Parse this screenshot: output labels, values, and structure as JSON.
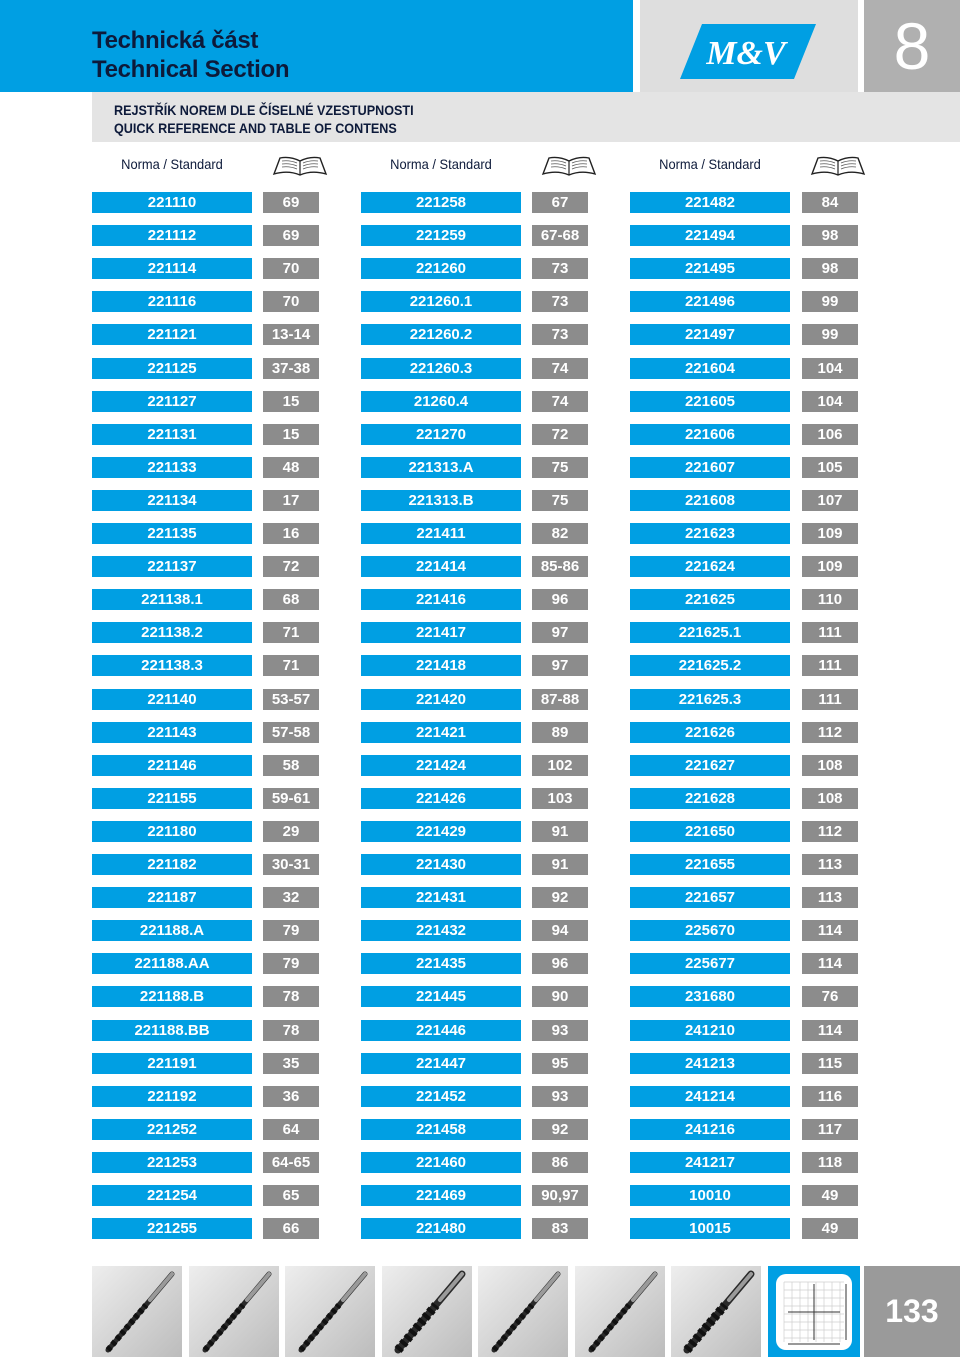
{
  "header": {
    "title_cz": "Technická část",
    "title_en": "Technical Section",
    "logo_text": "M&V",
    "chapter": "8"
  },
  "subheader": {
    "line1": "REJSTŘÍK NOREM DLE ČÍSELNÉ VZESTUPNOSTI",
    "line2": "QUICK REFERENCE AND TABLE OF CONTENS"
  },
  "column_label": "Norma / Standard",
  "columns": [
    [
      [
        "221110",
        "69"
      ],
      [
        "221112",
        "69"
      ],
      [
        "221114",
        "70"
      ],
      [
        "221116",
        "70"
      ],
      [
        "221121",
        "13-14"
      ],
      [
        "221125",
        "37-38"
      ],
      [
        "221127",
        "15"
      ],
      [
        "221131",
        "15"
      ],
      [
        "221133",
        "48"
      ],
      [
        "221134",
        "17"
      ],
      [
        "221135",
        "16"
      ],
      [
        "221137",
        "72"
      ],
      [
        "221138.1",
        "68"
      ],
      [
        "221138.2",
        "71"
      ],
      [
        "221138.3",
        "71"
      ],
      [
        "221140",
        "53-57"
      ],
      [
        "221143",
        "57-58"
      ],
      [
        "221146",
        "58"
      ],
      [
        "221155",
        "59-61"
      ],
      [
        "221180",
        "29"
      ],
      [
        "221182",
        "30-31"
      ],
      [
        "221187",
        "32"
      ],
      [
        "221188.A",
        "79"
      ],
      [
        "221188.AA",
        "79"
      ],
      [
        "221188.B",
        "78"
      ],
      [
        "221188.BB",
        "78"
      ],
      [
        "221191",
        "35"
      ],
      [
        "221192",
        "36"
      ],
      [
        "221252",
        "64"
      ],
      [
        "221253",
        "64-65"
      ],
      [
        "221254",
        "65"
      ],
      [
        "221255",
        "66"
      ]
    ],
    [
      [
        "221258",
        "67"
      ],
      [
        "221259",
        "67-68"
      ],
      [
        "221260",
        "73"
      ],
      [
        "221260.1",
        "73"
      ],
      [
        "221260.2",
        "73"
      ],
      [
        "221260.3",
        "74"
      ],
      [
        "21260.4",
        "74"
      ],
      [
        "221270",
        "72"
      ],
      [
        "221313.A",
        "75"
      ],
      [
        "221313.B",
        "75"
      ],
      [
        "221411",
        "82"
      ],
      [
        "221414",
        "85-86"
      ],
      [
        "221416",
        "96"
      ],
      [
        "221417",
        "97"
      ],
      [
        "221418",
        "97"
      ],
      [
        "221420",
        "87-88"
      ],
      [
        "221421",
        "89"
      ],
      [
        "221424",
        "102"
      ],
      [
        "221426",
        "103"
      ],
      [
        "221429",
        "91"
      ],
      [
        "221430",
        "91"
      ],
      [
        "221431",
        "92"
      ],
      [
        "221432",
        "94"
      ],
      [
        "221435",
        "96"
      ],
      [
        "221445",
        "90"
      ],
      [
        "221446",
        "93"
      ],
      [
        "221447",
        "95"
      ],
      [
        "221452",
        "93"
      ],
      [
        "221458",
        "92"
      ],
      [
        "221460",
        "86"
      ],
      [
        "221469",
        "90,97"
      ],
      [
        "221480",
        "83"
      ]
    ],
    [
      [
        "221482",
        "84"
      ],
      [
        "221494",
        "98"
      ],
      [
        "221495",
        "98"
      ],
      [
        "221496",
        "99"
      ],
      [
        "221497",
        "99"
      ],
      [
        "221604",
        "104"
      ],
      [
        "221605",
        "104"
      ],
      [
        "221606",
        "106"
      ],
      [
        "221607",
        "105"
      ],
      [
        "221608",
        "107"
      ],
      [
        "221623",
        "109"
      ],
      [
        "221624",
        "109"
      ],
      [
        "221625",
        "110"
      ],
      [
        "221625.1",
        "111"
      ],
      [
        "221625.2",
        "111"
      ],
      [
        "221625.3",
        "111"
      ],
      [
        "221626",
        "112"
      ],
      [
        "221627",
        "108"
      ],
      [
        "221628",
        "108"
      ],
      [
        "221650",
        "112"
      ],
      [
        "221655",
        "113"
      ],
      [
        "221657",
        "113"
      ],
      [
        "225670",
        "114"
      ],
      [
        "225677",
        "114"
      ],
      [
        "231680",
        "76"
      ],
      [
        "241210",
        "114"
      ],
      [
        "241213",
        "115"
      ],
      [
        "241214",
        "116"
      ],
      [
        "241216",
        "117"
      ],
      [
        "241217",
        "118"
      ],
      [
        "10010",
        "49"
      ],
      [
        "10015",
        "49"
      ]
    ]
  ],
  "footer": {
    "page_number": "133",
    "tool_icons": [
      "twist-drill-icon",
      "step-drill-icon",
      "spiral-drill-icon",
      "countersink-icon",
      "taper-reamer-icon",
      "reamer-icon",
      "pilot-counterbore-icon"
    ],
    "grid_icon": "dimension-grid-icon"
  }
}
